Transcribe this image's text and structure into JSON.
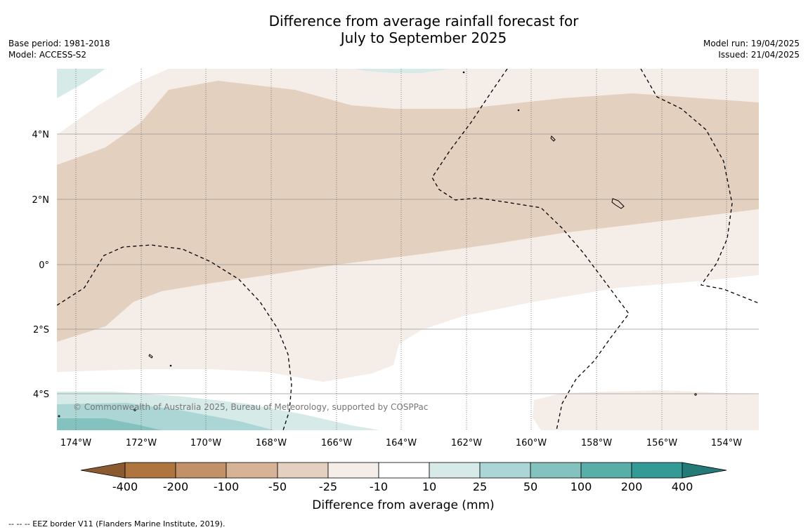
{
  "header": {
    "title_line1": "Difference from average rainfall forecast for",
    "title_line2": "July to September 2025",
    "base_period": "Base period: 1981-2018",
    "model": "Model: ACCESS-S2",
    "model_run": "Model run: 19/04/2025",
    "issued": "Issued: 21/04/2025"
  },
  "map": {
    "copyright": "© Commonwealth of Australia 2025, Bureau of Meteorology, supported by COSPPac",
    "x_ticks": [
      "174°W",
      "172°W",
      "170°W",
      "168°W",
      "166°W",
      "164°W",
      "162°W",
      "160°W",
      "158°W",
      "156°W",
      "154°W"
    ],
    "y_ticks": [
      "4°N",
      "2°N",
      "0°",
      "2°S",
      "4°S"
    ]
  },
  "colorbar": {
    "title": "Difference from average (mm)",
    "tick_labels": [
      "-400",
      "-200",
      "-100",
      "-50",
      "-25",
      "-10",
      "10",
      "25",
      "50",
      "100",
      "200",
      "400"
    ],
    "colors": {
      "lt_-400": "#8c5a30",
      "-400_-200": "#ae753f",
      "-200_-100": "#c29168",
      "-100_-50": "#d6b396",
      "-50_-25": "#e3d0bf",
      "-25_-10": "#f5ede7",
      "-10_10": "#ffffff",
      "10_25": "#d6eae7",
      "25_50": "#acd6d5",
      "50_100": "#84c2bf",
      "100_200": "#5aaeaa",
      "200_400": "#349a96",
      "gt_400": "#237a76"
    }
  },
  "footnote": "--  --  -- EEZ border V11 (Flanders Marine Institute, 2019)."
}
